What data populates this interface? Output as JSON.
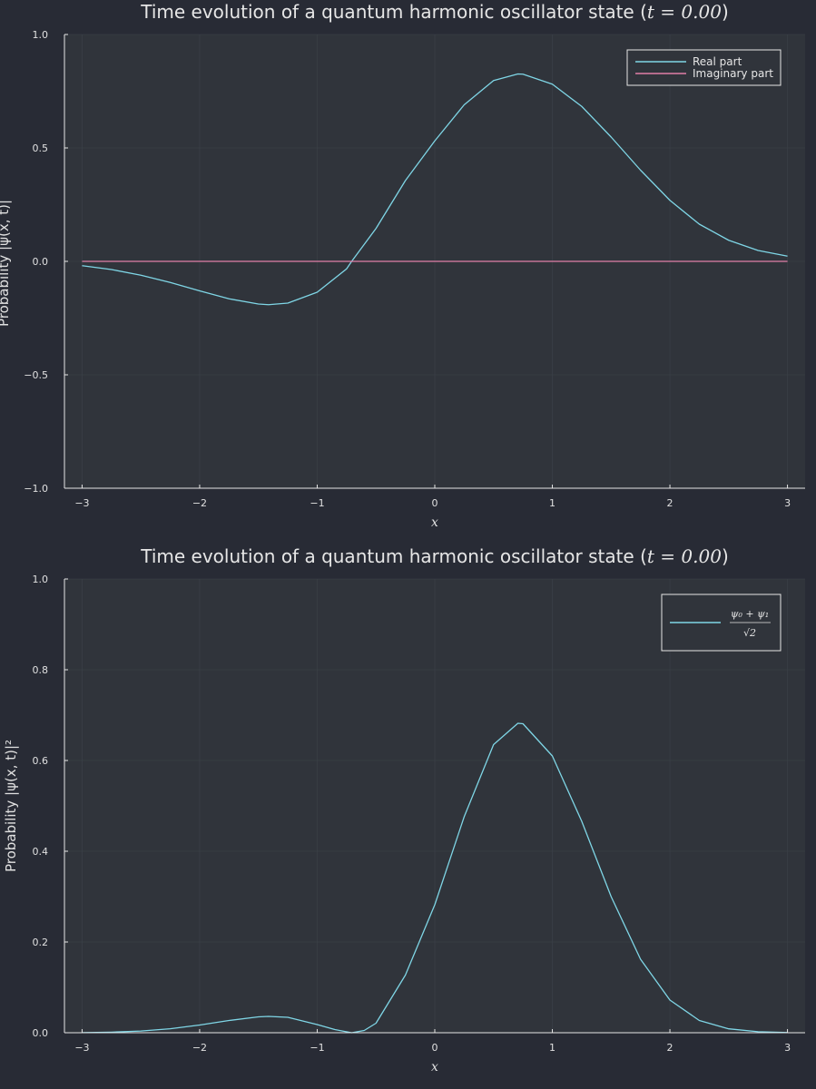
{
  "colors": {
    "background": "#282b35",
    "plot_area": "#30343b",
    "grid": "#3d424a",
    "axis": "#e6e6e6",
    "text": "#e6e6e6",
    "series_cyan": "#7fd6e6",
    "series_pink": "#e07fa8"
  },
  "chart_data": [
    {
      "type": "line",
      "title": "Time evolution of a quantum harmonic oscillator state (t = 0.00)",
      "title_parts": {
        "prefix": "Time evolution of a quantum harmonic oscillator state (",
        "math": "t = 0.00",
        "suffix": ")"
      },
      "xlabel": "x",
      "ylabel": "Probability |ψ(x, t)|",
      "xlim": [
        -3.15,
        3.15
      ],
      "ylim": [
        -1.0,
        1.0
      ],
      "x_ticks": [
        -3,
        -2,
        -1,
        0,
        1,
        2,
        3
      ],
      "x_tick_labels": [
        "−3",
        "−2",
        "−1",
        "0",
        "1",
        "2",
        "3"
      ],
      "y_ticks": [
        -1.0,
        -0.5,
        0.0,
        0.5,
        1.0
      ],
      "y_tick_labels": [
        "−1.0",
        "−0.5",
        "0.0",
        "0.5",
        "1.0"
      ],
      "grid": true,
      "legend_position": "top-right",
      "series": [
        {
          "name": "Real part",
          "color": "#7fd6e6",
          "x": [
            -3.0,
            -2.75,
            -2.5,
            -2.25,
            -2.0,
            -1.75,
            -1.5,
            -1.414,
            -1.25,
            -1.0,
            -0.75,
            -0.707,
            -0.5,
            -0.25,
            0.0,
            0.25,
            0.5,
            0.707,
            0.75,
            1.0,
            1.25,
            1.5,
            1.75,
            2.0,
            2.25,
            2.5,
            2.75,
            3.0
          ],
          "y": [
            -0.019,
            -0.036,
            -0.061,
            -0.093,
            -0.13,
            -0.165,
            -0.188,
            -0.191,
            -0.184,
            -0.136,
            -0.033,
            0.0,
            0.145,
            0.356,
            0.531,
            0.69,
            0.797,
            0.826,
            0.825,
            0.781,
            0.683,
            0.548,
            0.402,
            0.269,
            0.164,
            0.093,
            0.048,
            0.023
          ]
        },
        {
          "name": "Imaginary part",
          "color": "#e07fa8",
          "x": [
            -3.0,
            3.0
          ],
          "y": [
            0.0,
            0.0
          ]
        }
      ]
    },
    {
      "type": "line",
      "title": "Time evolution of a quantum harmonic oscillator state (t = 0.00)",
      "title_parts": {
        "prefix": "Time evolution of a quantum harmonic oscillator state (",
        "math": "t = 0.00",
        "suffix": ")"
      },
      "xlabel": "x",
      "ylabel": "Probability |ψ(x, t)|²",
      "xlim": [
        -3.15,
        3.15
      ],
      "ylim": [
        0.0,
        1.0
      ],
      "x_ticks": [
        -3,
        -2,
        -1,
        0,
        1,
        2,
        3
      ],
      "x_tick_labels": [
        "−3",
        "−2",
        "−1",
        "0",
        "1",
        "2",
        "3"
      ],
      "y_ticks": [
        0.0,
        0.2,
        0.4,
        0.6,
        0.8,
        1.0
      ],
      "y_tick_labels": [
        "0.0",
        "0.2",
        "0.4",
        "0.6",
        "0.8",
        "1.0"
      ],
      "grid": true,
      "legend_position": "top-right",
      "legend_label": {
        "numerator": "ψ₀ + ψ₁",
        "denominator": "√2"
      },
      "series": [
        {
          "name": "(ψ₀ + ψ₁)/√2",
          "color": "#7fd6e6",
          "x": [
            -3.0,
            -2.75,
            -2.5,
            -2.25,
            -2.0,
            -1.75,
            -1.5,
            -1.414,
            -1.25,
            -1.0,
            -0.85,
            -0.707,
            -0.6,
            -0.5,
            -0.25,
            0.0,
            0.25,
            0.5,
            0.707,
            0.75,
            1.0,
            1.25,
            1.5,
            1.75,
            2.0,
            2.25,
            2.5,
            2.75,
            3.0
          ],
          "y": [
            0.0003,
            0.0013,
            0.0037,
            0.0087,
            0.017,
            0.027,
            0.035,
            0.036,
            0.034,
            0.018,
            0.007,
            0.0,
            0.005,
            0.021,
            0.127,
            0.282,
            0.476,
            0.635,
            0.682,
            0.681,
            0.61,
            0.466,
            0.3,
            0.162,
            0.072,
            0.027,
            0.0086,
            0.0023,
            0.0005
          ]
        }
      ]
    }
  ]
}
